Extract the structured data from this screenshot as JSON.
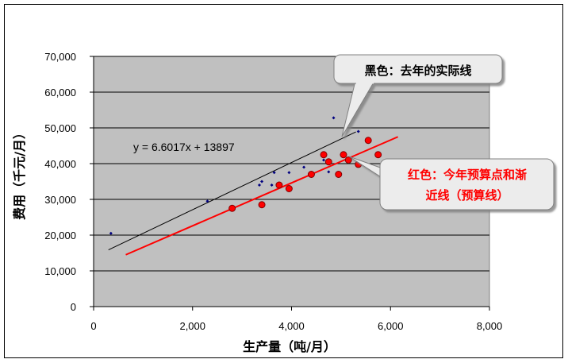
{
  "chart_data": {
    "type": "scatter",
    "title": "",
    "xlabel": "生产量（吨/月）",
    "ylabel": "费用（千元/月）",
    "xlim": [
      0,
      8000
    ],
    "ylim": [
      0,
      70000
    ],
    "x_ticks": [
      "0",
      "2,000",
      "4,000",
      "6,000",
      "8,000"
    ],
    "y_ticks": [
      "0",
      "10,000",
      "20,000",
      "30,000",
      "40,000",
      "50,000",
      "60,000",
      "70,000"
    ],
    "grid": "horizontal",
    "plot_background": "#c0c0c0",
    "series": [
      {
        "color": "#000080",
        "marker": "small-diamond",
        "points": [
          [
            350,
            20500
          ],
          [
            2300,
            29500
          ],
          [
            3350,
            34000
          ],
          [
            3400,
            35000
          ],
          [
            3600,
            34000
          ],
          [
            3650,
            37500
          ],
          [
            3950,
            37500
          ],
          [
            4250,
            39000
          ],
          [
            4650,
            41000
          ],
          [
            4750,
            37700
          ],
          [
            4850,
            52800
          ],
          [
            5350,
            49000
          ]
        ]
      },
      {
        "color": "#ff0000",
        "marker": "circle",
        "points": [
          [
            2800,
            27500
          ],
          [
            3400,
            28500
          ],
          [
            3750,
            34000
          ],
          [
            3950,
            33000
          ],
          [
            4400,
            37000
          ],
          [
            4650,
            42500
          ],
          [
            4750,
            40500
          ],
          [
            4950,
            37000
          ],
          [
            5050,
            42500
          ],
          [
            5150,
            41000
          ],
          [
            5350,
            39800
          ],
          [
            5550,
            46500
          ],
          [
            5750,
            42500
          ]
        ]
      }
    ],
    "trendlines": [
      {
        "color": "#000000",
        "x": [
          300,
          5300
        ],
        "y": [
          15877.1,
          48885.6
        ],
        "equation": "y = 6.6017x + 13897"
      },
      {
        "color": "#ff0000",
        "x": [
          650,
          6150
        ],
        "y": [
          14500,
          47500
        ]
      }
    ],
    "annotations": {
      "black_line_label": "黑色：去年的实际线",
      "red_line_label_1": "红色：今年预算点和渐",
      "red_line_label_2": "近线（预算线）"
    }
  }
}
